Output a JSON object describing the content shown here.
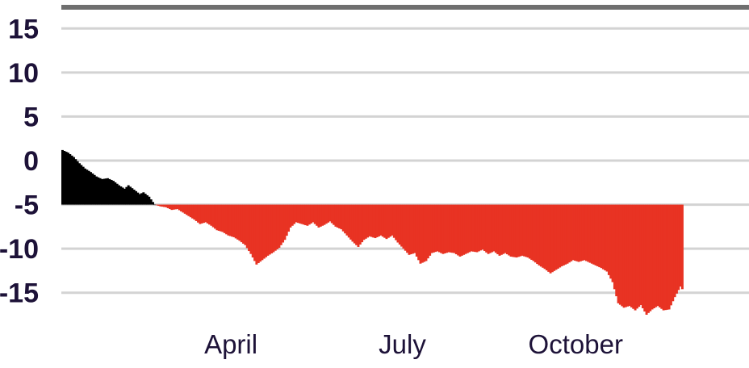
{
  "chart_data": {
    "type": "bar",
    "title": "",
    "xlabel": "",
    "ylabel": "",
    "ylim": [
      -17.5,
      17.5
    ],
    "baseline": -5,
    "y_ticks": [
      "15",
      "10",
      "5",
      "0",
      "-5",
      "-10",
      "-15"
    ],
    "x_ticks": [
      {
        "label": "April",
        "x": 90
      },
      {
        "label": "July",
        "x": 181
      },
      {
        "label": "October",
        "x": 273
      }
    ],
    "x_range": [
      0,
      365
    ],
    "grid": true,
    "colors": {
      "above": "#000000",
      "below": "#e83323",
      "grid": "#d3d3d3",
      "top_rule": "#6f6f6f",
      "text": "#1d1238"
    },
    "profile": [
      [
        0,
        1.2
      ],
      [
        3,
        0.9
      ],
      [
        6,
        0.4
      ],
      [
        9,
        -0.3
      ],
      [
        12,
        -0.9
      ],
      [
        15,
        -1.3
      ],
      [
        18,
        -1.8
      ],
      [
        21,
        -2.1
      ],
      [
        24,
        -2.0
      ],
      [
        27,
        -2.3
      ],
      [
        30,
        -2.8
      ],
      [
        33,
        -3.2
      ],
      [
        35,
        -2.8
      ],
      [
        38,
        -3.3
      ],
      [
        41,
        -3.8
      ],
      [
        43,
        -3.6
      ],
      [
        46,
        -4.1
      ],
      [
        49,
        -5.0
      ],
      [
        52,
        -5.2
      ],
      [
        55,
        -5.3
      ],
      [
        58,
        -5.6
      ],
      [
        61,
        -5.5
      ],
      [
        64,
        -5.9
      ],
      [
        67,
        -6.3
      ],
      [
        70,
        -6.7
      ],
      [
        73,
        -7.2
      ],
      [
        76,
        -7.0
      ],
      [
        79,
        -7.4
      ],
      [
        82,
        -7.9
      ],
      [
        85,
        -8.1
      ],
      [
        88,
        -8.5
      ],
      [
        91,
        -8.7
      ],
      [
        94,
        -9.1
      ],
      [
        97,
        -9.6
      ],
      [
        100,
        -10.6
      ],
      [
        103,
        -11.8
      ],
      [
        106,
        -11.3
      ],
      [
        109,
        -10.8
      ],
      [
        112,
        -10.4
      ],
      [
        115,
        -9.9
      ],
      [
        118,
        -9.0
      ],
      [
        121,
        -7.6
      ],
      [
        124,
        -7.0
      ],
      [
        127,
        -7.2
      ],
      [
        130,
        -7.4
      ],
      [
        133,
        -7.0
      ],
      [
        136,
        -7.6
      ],
      [
        139,
        -7.3
      ],
      [
        142,
        -6.9
      ],
      [
        145,
        -7.5
      ],
      [
        148,
        -7.8
      ],
      [
        151,
        -8.5
      ],
      [
        154,
        -9.2
      ],
      [
        157,
        -9.8
      ],
      [
        160,
        -9.0
      ],
      [
        163,
        -8.6
      ],
      [
        166,
        -8.8
      ],
      [
        169,
        -8.5
      ],
      [
        172,
        -8.9
      ],
      [
        175,
        -8.5
      ],
      [
        178,
        -9.3
      ],
      [
        181,
        -10.0
      ],
      [
        184,
        -10.7
      ],
      [
        187,
        -10.5
      ],
      [
        190,
        -11.7
      ],
      [
        193,
        -11.4
      ],
      [
        196,
        -10.5
      ],
      [
        199,
        -10.3
      ],
      [
        202,
        -10.6
      ],
      [
        205,
        -10.4
      ],
      [
        208,
        -10.5
      ],
      [
        211,
        -10.9
      ],
      [
        214,
        -10.6
      ],
      [
        217,
        -10.3
      ],
      [
        220,
        -10.4
      ],
      [
        223,
        -10.1
      ],
      [
        226,
        -10.6
      ],
      [
        229,
        -10.3
      ],
      [
        232,
        -10.8
      ],
      [
        235,
        -10.5
      ],
      [
        238,
        -10.9
      ],
      [
        241,
        -11.0
      ],
      [
        244,
        -10.8
      ],
      [
        247,
        -11.0
      ],
      [
        250,
        -11.4
      ],
      [
        253,
        -11.9
      ],
      [
        256,
        -12.3
      ],
      [
        259,
        -12.8
      ],
      [
        262,
        -12.4
      ],
      [
        265,
        -12.0
      ],
      [
        268,
        -11.7
      ],
      [
        271,
        -11.3
      ],
      [
        274,
        -11.5
      ],
      [
        277,
        -11.3
      ],
      [
        280,
        -11.6
      ],
      [
        283,
        -11.9
      ],
      [
        286,
        -12.2
      ],
      [
        289,
        -12.6
      ],
      [
        292,
        -13.8
      ],
      [
        295,
        -16.2
      ],
      [
        298,
        -16.7
      ],
      [
        301,
        -16.5
      ],
      [
        304,
        -17.0
      ],
      [
        307,
        -16.4
      ],
      [
        310,
        -17.5
      ],
      [
        313,
        -16.9
      ],
      [
        316,
        -16.5
      ],
      [
        319,
        -17.0
      ],
      [
        322,
        -16.9
      ],
      [
        325,
        -15.5
      ],
      [
        328,
        -14.3
      ],
      [
        329,
        -14.6
      ]
    ]
  }
}
